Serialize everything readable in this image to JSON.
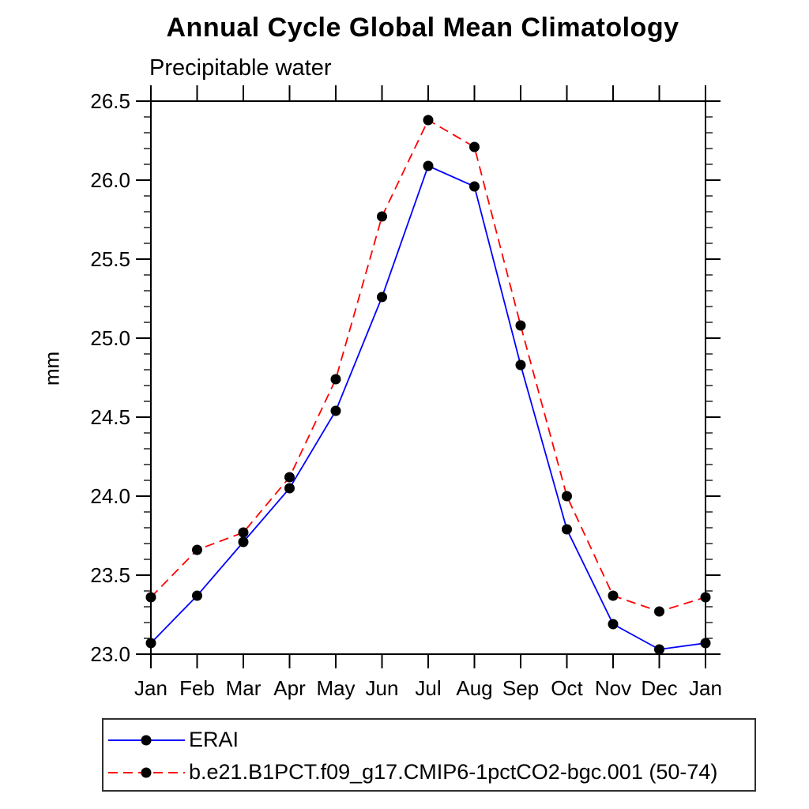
{
  "chart": {
    "title": "Annual Cycle Global Mean Climatology",
    "subtitle": "Precipitable water",
    "ylabel": "mm"
  },
  "chart_data": {
    "type": "line",
    "title": "Annual Cycle Global Mean Climatology",
    "subtitle": "Precipitable water",
    "xlabel": "",
    "ylabel": "mm",
    "categories": [
      "Jan",
      "Feb",
      "Mar",
      "Apr",
      "May",
      "Jun",
      "Jul",
      "Aug",
      "Sep",
      "Oct",
      "Nov",
      "Dec",
      "Jan"
    ],
    "series": [
      {
        "name": "ERAI",
        "color": "#0000ff",
        "line_style": "solid",
        "marker": "filled-circle",
        "marker_color": "#000000",
        "values": [
          23.07,
          23.37,
          23.71,
          24.05,
          24.54,
          25.26,
          26.09,
          25.96,
          24.83,
          23.79,
          23.19,
          23.03,
          23.07
        ]
      },
      {
        "name": "b.e21.B1PCT.f09_g17.CMIP6-1pctCO2-bgc.001 (50-74)",
        "color": "#ff0000",
        "line_style": "dashed",
        "marker": "filled-circle",
        "marker_color": "#000000",
        "values": [
          23.36,
          23.66,
          23.77,
          24.12,
          24.74,
          25.77,
          26.38,
          26.21,
          25.08,
          24.0,
          23.37,
          23.27,
          23.36
        ]
      }
    ],
    "ylim": [
      23.0,
      26.5
    ],
    "ytick_major_step": 0.5,
    "ytick_minor_step": 0.1,
    "ytick_labels": [
      "23.0",
      "23.5",
      "24.0",
      "24.5",
      "25.0",
      "25.5",
      "26.0",
      "26.5"
    ],
    "grid": false,
    "axis_color": "#000000",
    "frame": "box-with-outward-ticks",
    "legend_position": "bottom-left-box"
  }
}
